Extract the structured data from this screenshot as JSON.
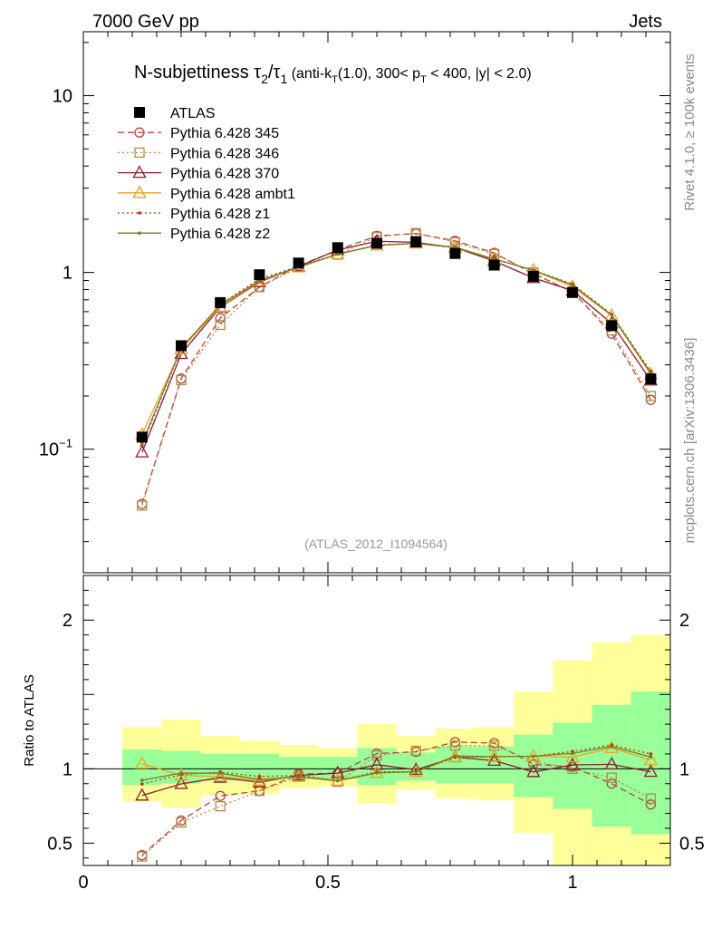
{
  "header": {
    "left_label": "7000 GeV pp",
    "right_label": "Jets"
  },
  "side_labels": {
    "rivet": "Rivet 4.1.0, ≥ 100k events",
    "mcplots": "mcplots.cern.ch [arXiv:1306.3436]"
  },
  "chart_data": {
    "type": "line",
    "title": {
      "main": "N-subjettiness τ",
      "sub2": "2",
      "slash": "/τ",
      "sub1": "1",
      "cut_a": " (anti-k",
      "cut_T1": "T",
      "cut_b": "(1.0), 300< p",
      "cut_T2": "T",
      "cut_c": " < 400, |y| < 2.0)"
    },
    "analysis_label": "(ATLAS_2012_I1094564)",
    "ylabel_ratio": "Ratio to ATLAS",
    "x": [
      0.12,
      0.2,
      0.28,
      0.36,
      0.44,
      0.52,
      0.6,
      0.68,
      0.76,
      0.84,
      0.92,
      1.0,
      1.08,
      1.16
    ],
    "xlim": [
      0,
      1.2
    ],
    "ylim_main": [
      0.02,
      23
    ],
    "ylim_ratio": [
      0.35,
      2.3
    ],
    "x_ticks": [
      {
        "v": 0,
        "label": "0"
      },
      {
        "v": 0.5,
        "label": "0.5"
      },
      {
        "v": 1,
        "label": "1"
      }
    ],
    "y_ticks_main": [
      {
        "v": 0.1,
        "base": "10",
        "exp": "−1"
      },
      {
        "v": 1,
        "base": "1",
        "exp": ""
      },
      {
        "v": 10,
        "base": "10",
        "exp": ""
      }
    ],
    "y_ticks_ratio": [
      {
        "v": 0.5,
        "label": "0.5"
      },
      {
        "v": 1,
        "label": "1"
      },
      {
        "v": 2,
        "label": "2"
      }
    ],
    "data": {
      "name": "ATLAS",
      "values": [
        0.117,
        0.385,
        0.675,
        0.97,
        1.13,
        1.38,
        1.46,
        1.49,
        1.28,
        1.1,
        0.95,
        0.77,
        0.5,
        0.25
      ]
    },
    "bands": {
      "x_edges": [
        0.08,
        0.16,
        0.24,
        0.32,
        0.4,
        0.48,
        0.56,
        0.64,
        0.72,
        0.8,
        0.88,
        0.96,
        1.04,
        1.12,
        1.2
      ],
      "green": [
        [
          0.89,
          1.13
        ],
        [
          0.9,
          1.12
        ],
        [
          0.92,
          1.1
        ],
        [
          0.92,
          1.1
        ],
        [
          0.93,
          1.08
        ],
        [
          0.93,
          1.08
        ],
        [
          0.89,
          1.14
        ],
        [
          0.92,
          1.11
        ],
        [
          0.9,
          1.15
        ],
        [
          0.9,
          1.15
        ],
        [
          0.81,
          1.23
        ],
        [
          0.73,
          1.31
        ],
        [
          0.61,
          1.43
        ],
        [
          0.56,
          1.52
        ]
      ],
      "yellow": [
        [
          0.78,
          1.28
        ],
        [
          0.74,
          1.33
        ],
        [
          0.82,
          1.22
        ],
        [
          0.83,
          1.19
        ],
        [
          0.87,
          1.16
        ],
        [
          0.88,
          1.14
        ],
        [
          0.77,
          1.3
        ],
        [
          0.86,
          1.22
        ],
        [
          0.8,
          1.27
        ],
        [
          0.79,
          1.28
        ],
        [
          0.57,
          1.52
        ],
        [
          0.35,
          1.73
        ],
        [
          0.35,
          1.85
        ],
        [
          0.35,
          1.9
        ]
      ]
    },
    "series": [
      {
        "name": "Pythia 6.428 345",
        "color": "#b5453c",
        "dash": "7,4",
        "marker": "circle",
        "values": [
          0.049,
          0.251,
          0.552,
          0.826,
          1.09,
          1.34,
          1.61,
          1.66,
          1.51,
          1.29,
          0.98,
          0.78,
          0.45,
          0.19
        ]
      },
      {
        "name": "Pythia 6.428 346",
        "color": "#b08a4a",
        "dash": "2,3",
        "marker": "square",
        "values": [
          0.048,
          0.246,
          0.505,
          0.826,
          1.07,
          1.26,
          1.59,
          1.67,
          1.48,
          1.27,
          1.0,
          0.77,
          0.47,
          0.2
        ]
      },
      {
        "name": "Pythia 6.428 370",
        "color": "#8b1a2e",
        "dash": "",
        "marker": "triangle",
        "values": [
          0.096,
          0.346,
          0.635,
          0.882,
          1.08,
          1.34,
          1.5,
          1.48,
          1.38,
          1.16,
          0.93,
          0.79,
          0.515,
          0.245
        ]
      },
      {
        "name": "Pythia 6.428 ambt1",
        "color": "#f0a020",
        "dash": "",
        "marker": "triangle",
        "values": [
          0.121,
          0.368,
          0.64,
          0.894,
          1.07,
          1.27,
          1.42,
          1.46,
          1.38,
          1.19,
          1.03,
          0.83,
          0.57,
          0.265
        ]
      },
      {
        "name": "Pythia 6.428 z1",
        "color": "#c03018",
        "dash": "2,3",
        "marker": "dot",
        "values": [
          0.105,
          0.37,
          0.66,
          0.92,
          1.08,
          1.27,
          1.43,
          1.46,
          1.38,
          1.19,
          1.03,
          0.86,
          0.58,
          0.275
        ]
      },
      {
        "name": "Pythia 6.428 z2",
        "color": "#708020",
        "dash": "",
        "marker": "dot",
        "values": [
          0.108,
          0.374,
          0.655,
          0.9,
          1.07,
          1.27,
          1.42,
          1.46,
          1.39,
          1.19,
          1.03,
          0.85,
          0.575,
          0.27
        ]
      }
    ]
  }
}
